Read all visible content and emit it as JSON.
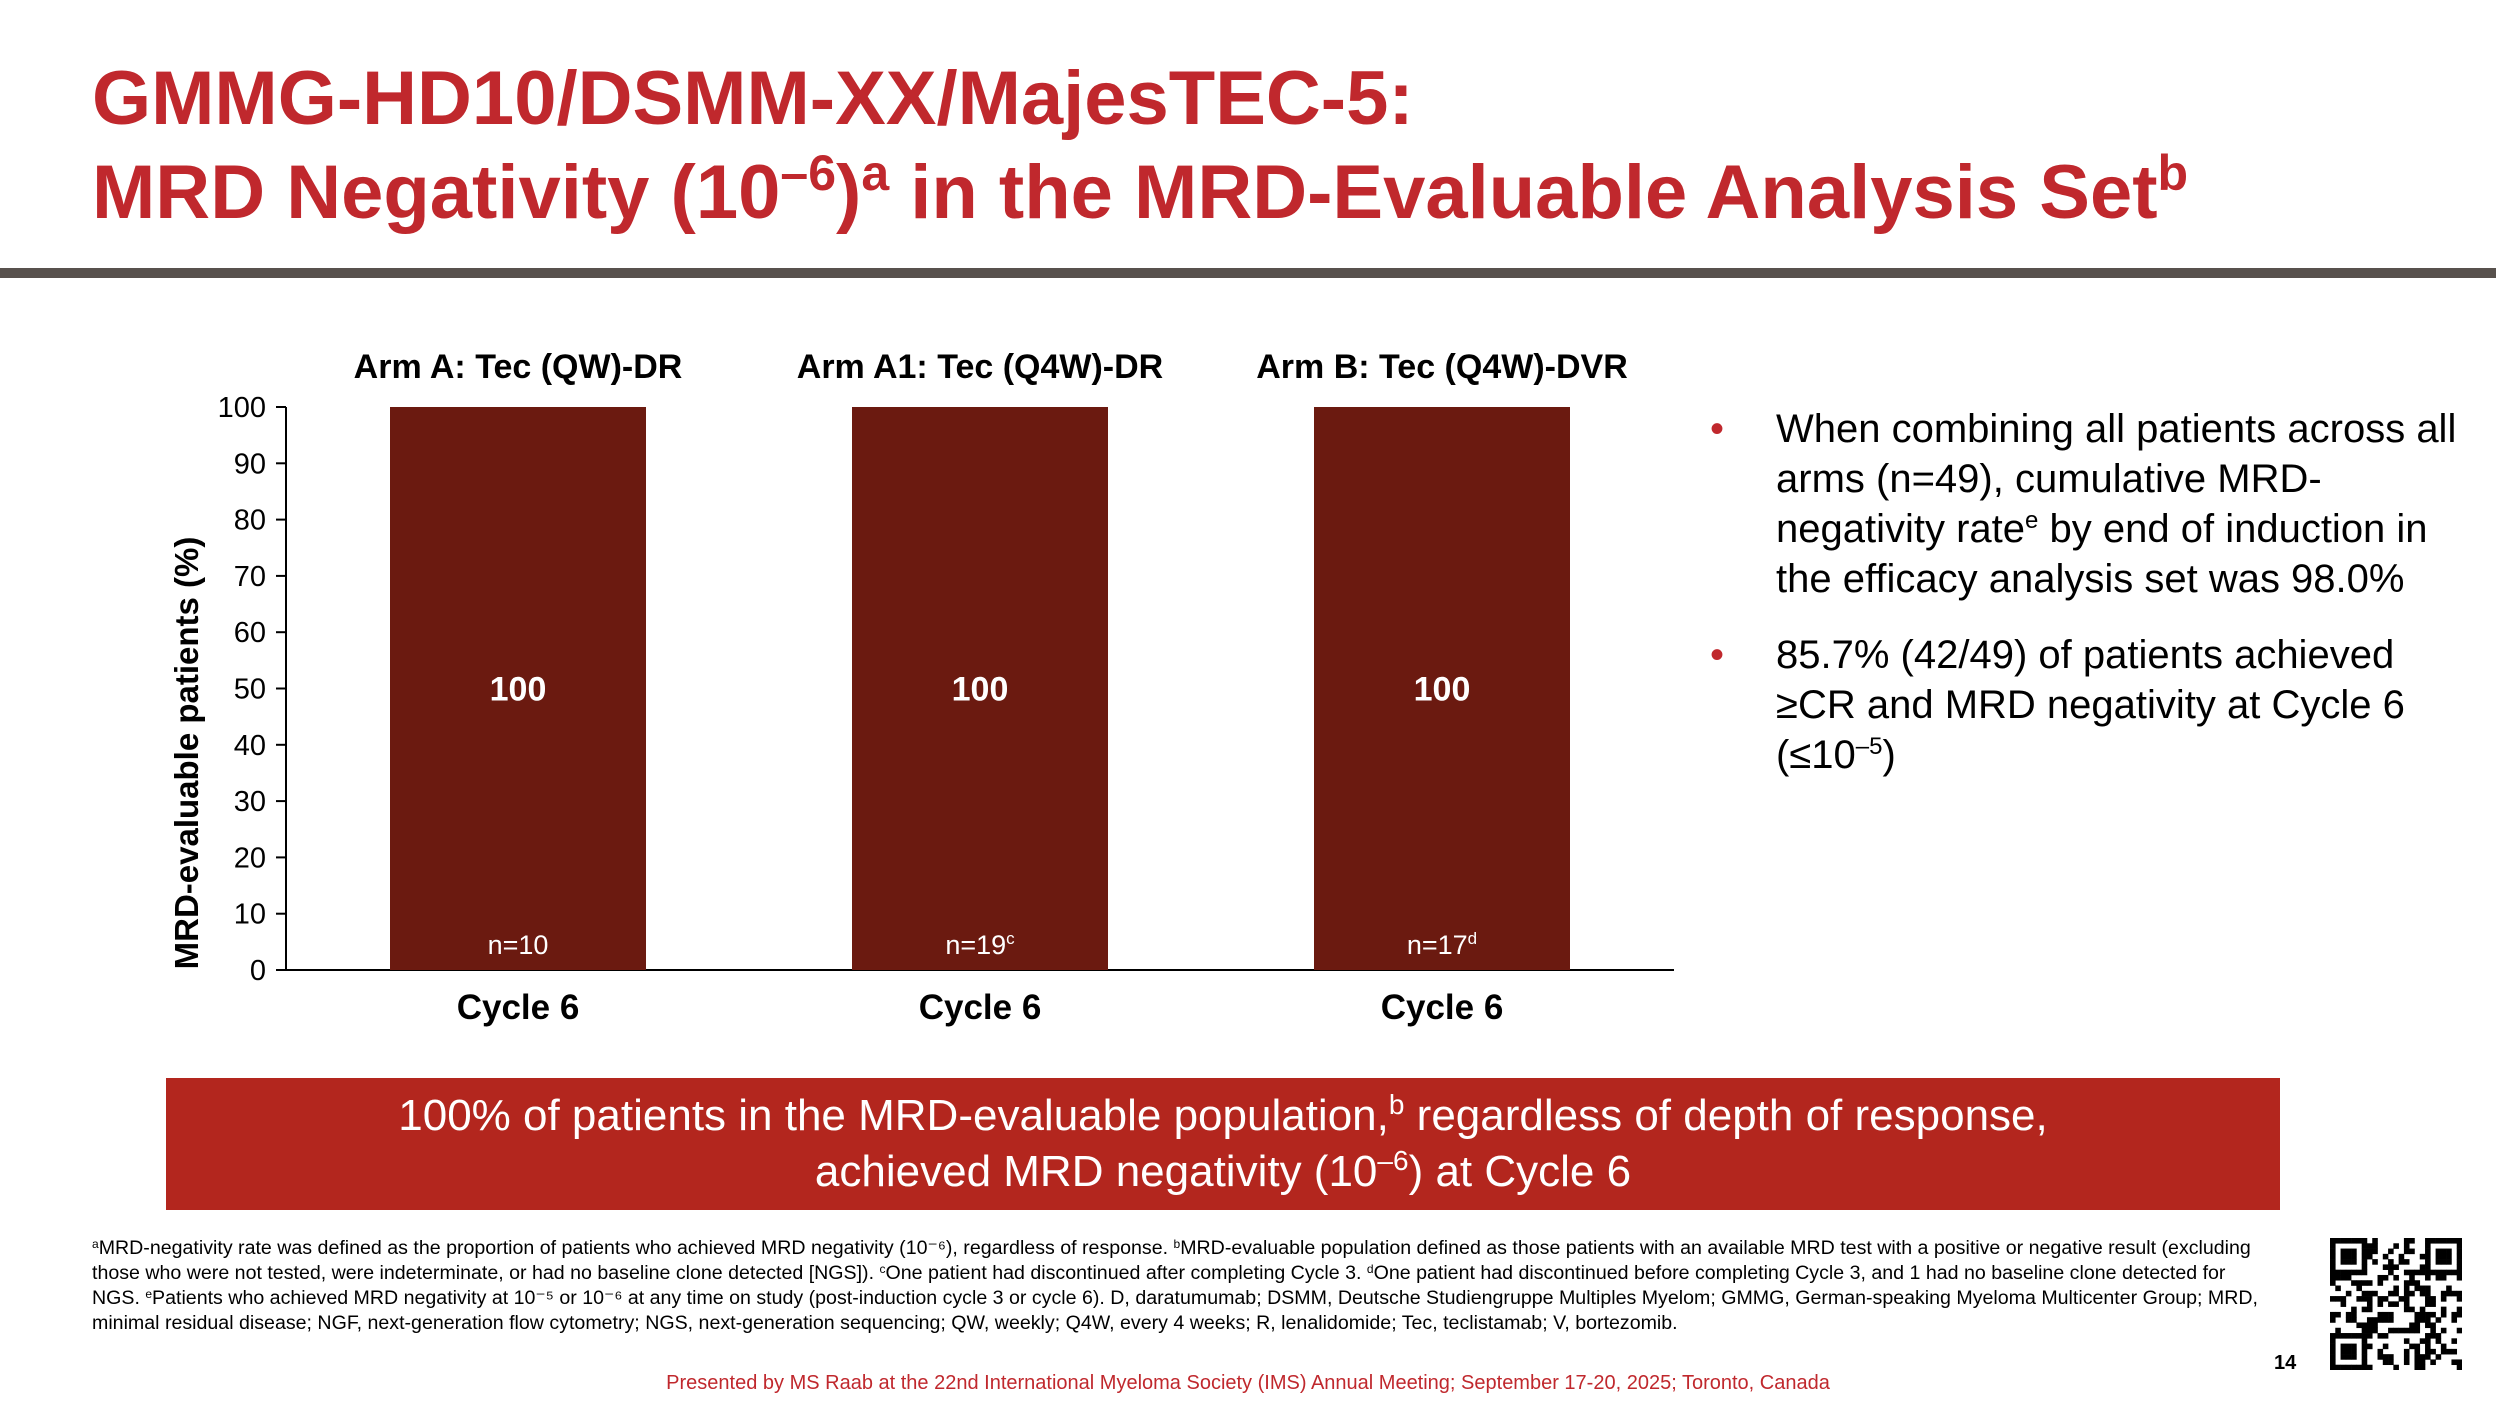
{
  "title": {
    "line1": "GMMG-HD10/DSMM-XX/MajesTEC-5:",
    "line2_a": "MRD Negativity (10",
    "line2_exp": "–6",
    "line2_b": ")",
    "line2_sup_a": "a",
    "line2_c": " in the MRD-Evaluable Analysis Set",
    "line2_sup_b": "b"
  },
  "colors": {
    "accent": "#c0282d",
    "bar": "#6b1a10",
    "banner": "#b3261e",
    "rule": "#58514d"
  },
  "chart_data": {
    "type": "bar",
    "ylabel": "MRD-evaluable patients (%)",
    "ylim": [
      0,
      100
    ],
    "yticks": [
      "0",
      "10",
      "20",
      "30",
      "40",
      "50",
      "60",
      "70",
      "80",
      "90",
      "100"
    ],
    "grid": false,
    "series": [
      {
        "arm": "Arm A: Tec (QW)-DR",
        "category": "Cycle 6",
        "value": 100,
        "value_label": "100",
        "n_label": "n=10",
        "n_sup": ""
      },
      {
        "arm": "Arm A1: Tec (Q4W)-DR",
        "category": "Cycle 6",
        "value": 100,
        "value_label": "100",
        "n_label": "n=19",
        "n_sup": "c"
      },
      {
        "arm": "Arm B: Tec (Q4W)-DVR",
        "category": "Cycle 6",
        "value": 100,
        "value_label": "100",
        "n_label": "n=17",
        "n_sup": "d"
      }
    ]
  },
  "bullets": [
    {
      "text_a": "When combining all patients across all arms (n=49), cumulative MRD-negativity rate",
      "sup": "e",
      "text_b": " by end of induction in the efficacy analysis set was 98.0%"
    },
    {
      "text_a": "85.7% (42/49) of patients achieved ≥CR and MRD negativity at Cycle 6 (≤10",
      "sup": "–5",
      "text_b": ")"
    }
  ],
  "banner": {
    "line1_a": "100% of patients in the MRD-evaluable population,",
    "line1_sup": "b",
    "line1_b": " regardless of depth of response,",
    "line2_a": "achieved MRD negativity (10",
    "line2_sup": "–6",
    "line2_b": ") at Cycle 6"
  },
  "footnotes": {
    "a_sup": "a",
    "a_text": "MRD-negativity rate was defined as the proportion of patients who achieved MRD negativity (10⁻⁶), regardless of response. ",
    "b_sup": "b",
    "b_text": "MRD-evaluable population defined as those patients with an available MRD test with a positive or negative result (excluding those who were not tested, were indeterminate, or had no baseline clone detected [NGS]). ",
    "c_sup": "c",
    "c_text": "One patient had discontinued after completing Cycle 3. ",
    "d_sup": "d",
    "d_text": "One patient had discontinued before completing Cycle 3, and 1 had no baseline clone detected for NGS. ",
    "e_sup": "e",
    "e_text": "Patients who achieved MRD negativity at 10⁻⁵ or 10⁻⁶ at any time on study (post-induction cycle 3 or cycle 6). D, daratumumab; DSMM, Deutsche Studiengruppe Multiples Myelom; GMMG, German-speaking Myeloma Multicenter Group; MRD, minimal residual disease; NGF, next-generation flow cytometry; NGS, next-generation sequencing; QW, weekly; Q4W, every 4 weeks; R, lenalidomide; Tec, teclistamab; V, bortezomib."
  },
  "presenter": "Presented by MS Raab at the 22nd International Myeloma Society (IMS) Annual Meeting; September 17-20, 2025; Toronto, Canada",
  "page_number": "14"
}
